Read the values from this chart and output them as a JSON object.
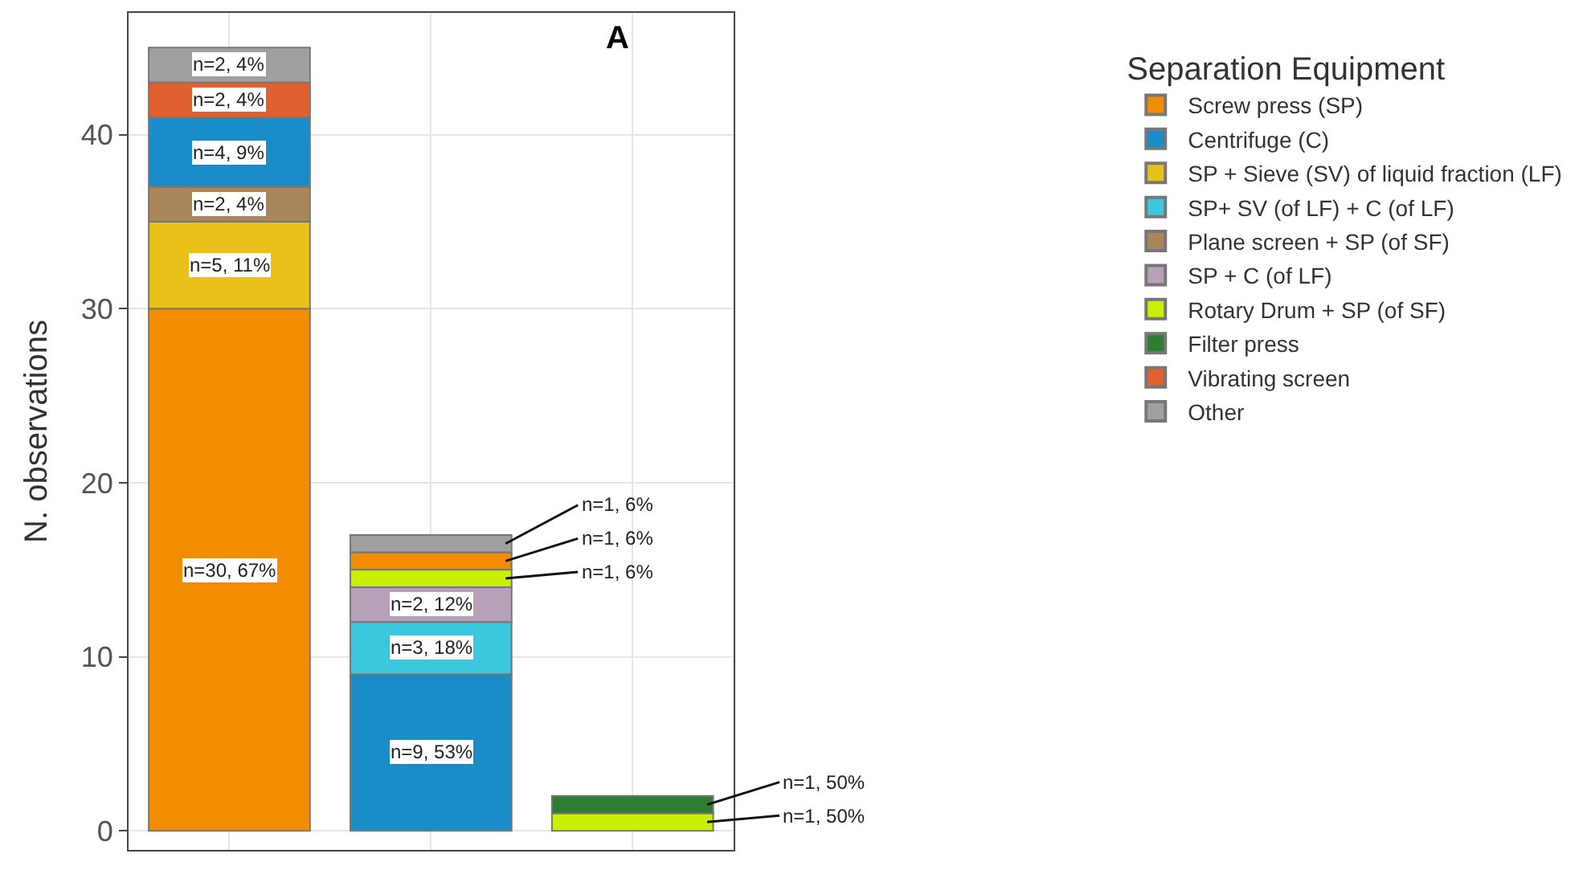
{
  "chart_data": {
    "type": "bar",
    "title": "A",
    "ylabel": "N. observations",
    "legend_title": "Separation Equipment",
    "categories": [
      null,
      null,
      null
    ],
    "ylim": [
      -1.1,
      47
    ],
    "yticks": [
      0,
      10,
      20,
      30,
      40
    ],
    "grid": true,
    "legend": "right",
    "series": [
      {
        "name": "Screw press (SP)",
        "color": "#f28c00",
        "values": [
          30,
          1,
          null
        ],
        "base": [
          0,
          15,
          null
        ],
        "value_labels": [
          "n=30, 67%",
          "n=1, 6%",
          null
        ]
      },
      {
        "name": "Centrifuge (C)",
        "color": "#1a8cc8",
        "values": [
          4,
          9,
          null
        ],
        "base": [
          37,
          0,
          null
        ],
        "value_labels": [
          "n=4, 9%",
          "n=9, 53%",
          null
        ]
      },
      {
        "name": "SP + Sieve (SV) of liquid fraction (LF)",
        "color": "#e8c21a",
        "values": [
          5,
          null,
          null
        ],
        "base": [
          30,
          null,
          null
        ],
        "value_labels": [
          "n=5, 11%",
          null,
          null
        ]
      },
      {
        "name": "SP+ SV (of LF) + C (of LF)",
        "color": "#3cc8dc",
        "values": [
          null,
          3,
          null
        ],
        "base": [
          null,
          9,
          null
        ],
        "value_labels": [
          null,
          "n=3, 18%",
          null
        ]
      },
      {
        "name": "Plane screen + SP (of SF)",
        "color": "#a8865a",
        "values": [
          2,
          null,
          null
        ],
        "base": [
          35,
          null,
          null
        ],
        "value_labels": [
          "n=2, 4%",
          null,
          null
        ]
      },
      {
        "name": "SP + C (of LF)",
        "color": "#b8a0b8",
        "values": [
          null,
          2,
          null
        ],
        "base": [
          null,
          12,
          null
        ],
        "value_labels": [
          null,
          "n=2, 12%",
          null
        ]
      },
      {
        "name": "Rotary Drum + SP (of SF)",
        "color": "#c8f000",
        "values": [
          null,
          1,
          1
        ],
        "base": [
          null,
          14,
          0
        ],
        "value_labels": [
          null,
          "n=1, 6%",
          "n=1, 50%"
        ]
      },
      {
        "name": "Filter press",
        "color": "#2e7d32",
        "values": [
          null,
          null,
          1
        ],
        "base": [
          null,
          null,
          1
        ],
        "value_labels": [
          null,
          null,
          "n=1, 50%"
        ]
      },
      {
        "name": "Vibrating screen",
        "color": "#e06030",
        "values": [
          2,
          null,
          null
        ],
        "base": [
          41,
          null,
          null
        ],
        "value_labels": [
          "n=2, 4%",
          null,
          null
        ]
      },
      {
        "name": "Other",
        "color": "#a0a0a0",
        "values": [
          2,
          1,
          null
        ],
        "base": [
          43,
          16,
          null
        ],
        "value_labels": [
          "n=2, 4%",
          "n=1, 6%",
          null
        ]
      }
    ]
  }
}
